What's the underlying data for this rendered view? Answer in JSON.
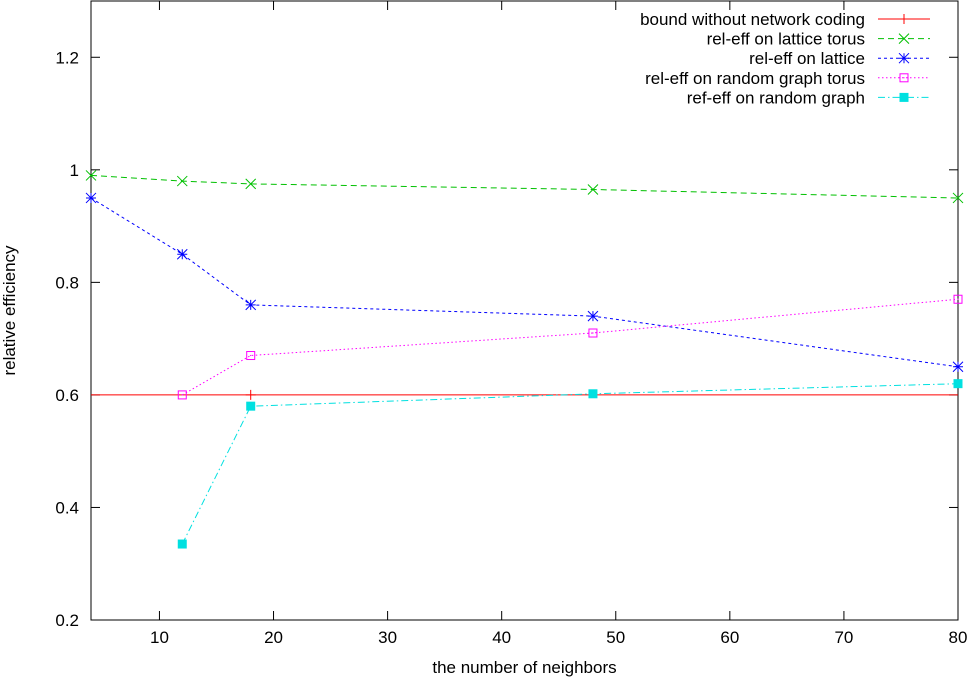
{
  "chart_data": {
    "type": "line",
    "title": "",
    "xlabel": "the number of neighbors",
    "ylabel": "relative efficiency",
    "xlim": [
      4,
      80
    ],
    "ylim": [
      0.2,
      1.3
    ],
    "x_ticks": [
      10,
      20,
      30,
      40,
      50,
      60,
      70,
      80
    ],
    "x_tick_labels": [
      "10",
      "20",
      "30",
      "40",
      "50",
      "60",
      "70",
      "80"
    ],
    "y_ticks": [
      0.2,
      0.4,
      0.6,
      0.8,
      1.0,
      1.2
    ],
    "y_tick_labels": [
      "0.2",
      "0.4",
      "0.6",
      "0.8",
      "1",
      "1.2"
    ],
    "grid": false,
    "legend_position": "top-right",
    "series": [
      {
        "name": "bound without network coding",
        "color": "#ff0000",
        "dash": "solid",
        "marker": "plus",
        "line": [
          [
            4,
            0.6
          ],
          [
            80,
            0.6
          ]
        ],
        "points": [
          [
            18,
            0.6
          ]
        ]
      },
      {
        "name": "rel-eff on lattice torus",
        "color": "#00c000",
        "dash": "dashed",
        "marker": "cross",
        "line": [
          [
            4,
            0.99
          ],
          [
            12,
            0.98
          ],
          [
            18,
            0.975
          ],
          [
            48,
            0.965
          ],
          [
            80,
            0.95
          ]
        ],
        "points": [
          [
            4,
            0.99
          ],
          [
            12,
            0.98
          ],
          [
            18,
            0.975
          ],
          [
            48,
            0.965
          ],
          [
            80,
            0.95
          ]
        ]
      },
      {
        "name": "rel-eff on lattice",
        "color": "#0000ff",
        "dash": "short-dashed",
        "marker": "star",
        "line": [
          [
            4,
            0.95
          ],
          [
            12,
            0.85
          ],
          [
            18,
            0.76
          ],
          [
            48,
            0.74
          ],
          [
            80,
            0.65
          ]
        ],
        "points": [
          [
            4,
            0.95
          ],
          [
            12,
            0.85
          ],
          [
            18,
            0.76
          ],
          [
            48,
            0.74
          ],
          [
            80,
            0.65
          ]
        ]
      },
      {
        "name": "rel-eff on random graph torus",
        "color": "#ff00ff",
        "dash": "dotted",
        "marker": "open-square",
        "line": [
          [
            12,
            0.6
          ],
          [
            18,
            0.67
          ],
          [
            48,
            0.71
          ],
          [
            80,
            0.77
          ]
        ],
        "points": [
          [
            12,
            0.6
          ],
          [
            18,
            0.67
          ],
          [
            48,
            0.71
          ],
          [
            80,
            0.77
          ]
        ]
      },
      {
        "name": "ref-eff on random graph",
        "color": "#00e0e0",
        "dash": "dash-dot",
        "marker": "filled-square",
        "line": [
          [
            12,
            0.335
          ],
          [
            18,
            0.58
          ],
          [
            48,
            0.602
          ],
          [
            80,
            0.62
          ]
        ],
        "points": [
          [
            12,
            0.335
          ],
          [
            18,
            0.58
          ],
          [
            48,
            0.602
          ],
          [
            80,
            0.62
          ]
        ]
      }
    ]
  }
}
